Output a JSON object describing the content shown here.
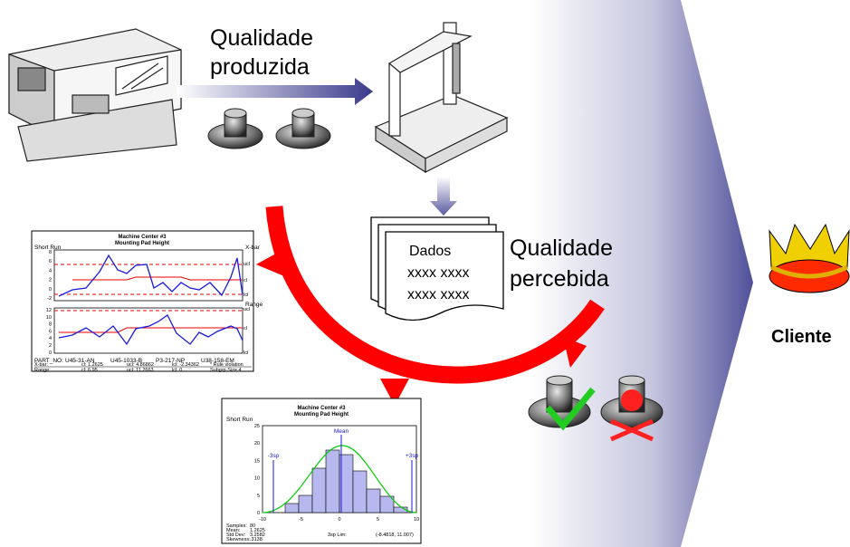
{
  "production": {
    "label": [
      "Qualidade",
      "produzida"
    ]
  },
  "measurement": {
    "document_title": "Dados",
    "document_lines": [
      "xxxx xxxx",
      "xxxx xxxx"
    ]
  },
  "perception": {
    "label": [
      "Qualidade",
      "percebida"
    ]
  },
  "customer": {
    "label": "Cliente"
  },
  "control_chart": {
    "title": [
      "Machine Center #3",
      "Mounting Pad Height"
    ],
    "method": "Short Run",
    "xbar_label": "X-bar",
    "range_label": "Range",
    "xbar_ticks": [
      "8",
      "6",
      "4",
      "2",
      "0",
      "-2"
    ],
    "range_ticks": [
      "12",
      "10",
      "8",
      "6",
      "4",
      "2",
      "0"
    ],
    "limit_labels": [
      "ucl",
      "cl",
      "lcl"
    ],
    "part_label": "PART_NO:",
    "parts": [
      "U45-31-AN",
      "U45-1033-B",
      "P3-217-NP",
      "U38-158-EM"
    ],
    "footer": [
      "X-bar:",
      "cl: 1.2625",
      "ucl: 4.86862",
      "lcl: -2.34362",
      "* Rule violation",
      "Range:",
      "cl: 6.95",
      "ucl: 11.2663",
      "lcl: 0",
      "Subgrp Size 4"
    ]
  },
  "histogram": {
    "title": [
      "Machine Center #3",
      "Mounting Pad Height"
    ],
    "method": "Short Run",
    "mean_label": "Mean",
    "lower_label": "-3sp",
    "upper_label": "+3sp",
    "yticks": [
      "0",
      "5",
      "10",
      "15",
      "20",
      "25"
    ],
    "xticks": [
      "-10",
      "-5",
      "0",
      "5",
      "10"
    ],
    "stats": [
      "Samples:",
      "Mean:",
      "Std Dev:",
      "Skewness:"
    ],
    "stat_values": [
      "80",
      "1.2625",
      "3.2582",
      ".3138"
    ],
    "limits": "3sp Lim:",
    "limit_values": "(-8.4818, 11.007)"
  }
}
